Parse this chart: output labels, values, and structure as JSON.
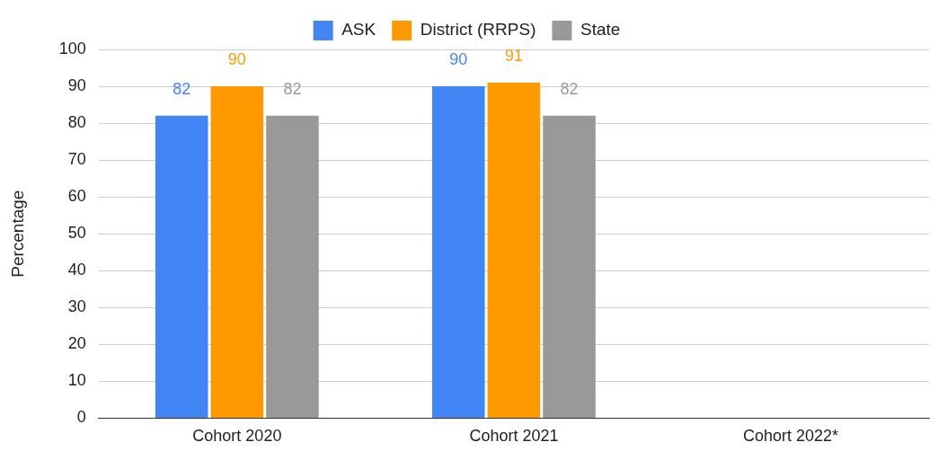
{
  "chart_data": {
    "type": "bar",
    "ylabel": "Percentage",
    "categories": [
      "Cohort 2020",
      "Cohort 2021",
      "Cohort 2022*"
    ],
    "series": [
      {
        "name": "ASK",
        "color": "#4285f4",
        "values": [
          82,
          90,
          null
        ]
      },
      {
        "name": "District (RRPS)",
        "color": "#ff9900",
        "values": [
          90,
          91,
          null
        ]
      },
      {
        "name": "State",
        "color": "#999999",
        "values": [
          82,
          82,
          null
        ]
      }
    ],
    "ylim": [
      0,
      100
    ],
    "yticks": [
      0,
      10,
      20,
      30,
      40,
      50,
      60,
      70,
      80,
      90,
      100
    ],
    "grid": "y",
    "legend": "top",
    "data_labels": true
  }
}
